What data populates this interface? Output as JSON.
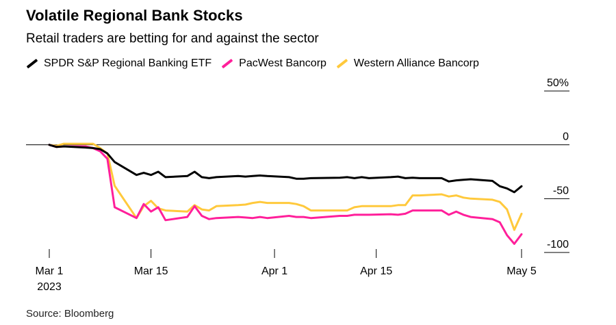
{
  "chart_data": {
    "type": "line",
    "title": "Volatile Regional Bank Stocks",
    "subtitle": "Retail traders are betting for and against the sector",
    "source": "Source: Bloomberg",
    "xlabel": "",
    "ylabel": "",
    "x_start": "2023-03-01",
    "x_end": "2023-05-05",
    "x_ticks": [
      {
        "date": "2023-03-01",
        "label": "Mar 1",
        "sublabel": "2023"
      },
      {
        "date": "2023-03-15",
        "label": "Mar 15"
      },
      {
        "date": "2023-04-01",
        "label": "Apr 1"
      },
      {
        "date": "2023-04-15",
        "label": "Apr 15"
      },
      {
        "date": "2023-05-05",
        "label": "May 5"
      }
    ],
    "y_ticks": [
      {
        "value": 50,
        "label": "50%"
      },
      {
        "value": 0,
        "label": "0"
      },
      {
        "value": -50,
        "label": "-50"
      },
      {
        "value": -100,
        "label": "-100"
      }
    ],
    "ylim": [
      -100,
      50
    ],
    "grid": false,
    "legend_position": "top-left",
    "series": [
      {
        "name": "SPDR S&P Regional Banking ETF",
        "color": "#000000",
        "points": [
          [
            "2023-03-01",
            0
          ],
          [
            "2023-03-02",
            -2
          ],
          [
            "2023-03-03",
            -1.5
          ],
          [
            "2023-03-06",
            -2.5
          ],
          [
            "2023-03-07",
            -3
          ],
          [
            "2023-03-08",
            -4
          ],
          [
            "2023-03-09",
            -8
          ],
          [
            "2023-03-10",
            -16
          ],
          [
            "2023-03-13",
            -28
          ],
          [
            "2023-03-14",
            -26
          ],
          [
            "2023-03-15",
            -28
          ],
          [
            "2023-03-16",
            -25
          ],
          [
            "2023-03-17",
            -30
          ],
          [
            "2023-03-20",
            -29
          ],
          [
            "2023-03-21",
            -25
          ],
          [
            "2023-03-22",
            -30
          ],
          [
            "2023-03-23",
            -31
          ],
          [
            "2023-03-24",
            -30
          ],
          [
            "2023-03-27",
            -29
          ],
          [
            "2023-03-28",
            -29.5
          ],
          [
            "2023-03-29",
            -29
          ],
          [
            "2023-03-30",
            -28.5
          ],
          [
            "2023-03-31",
            -29
          ],
          [
            "2023-04-03",
            -30
          ],
          [
            "2023-04-04",
            -31.5
          ],
          [
            "2023-04-05",
            -31.5
          ],
          [
            "2023-04-06",
            -31
          ],
          [
            "2023-04-10",
            -30.5
          ],
          [
            "2023-04-11",
            -30
          ],
          [
            "2023-04-12",
            -31
          ],
          [
            "2023-04-13",
            -30
          ],
          [
            "2023-04-14",
            -31
          ],
          [
            "2023-04-17",
            -30
          ],
          [
            "2023-04-18",
            -29.5
          ],
          [
            "2023-04-19",
            -31
          ],
          [
            "2023-04-20",
            -30.5
          ],
          [
            "2023-04-21",
            -31
          ],
          [
            "2023-04-24",
            -31
          ],
          [
            "2023-04-25",
            -34
          ],
          [
            "2023-04-26",
            -33
          ],
          [
            "2023-04-27",
            -32.5
          ],
          [
            "2023-04-28",
            -32
          ],
          [
            "2023-05-01",
            -33.5
          ],
          [
            "2023-05-02",
            -38.5
          ],
          [
            "2023-05-03",
            -40.5
          ],
          [
            "2023-05-04",
            -44
          ],
          [
            "2023-05-05",
            -38.5
          ]
        ]
      },
      {
        "name": "PacWest Bancorp",
        "color": "#ff1f9a",
        "points": [
          [
            "2023-03-01",
            0
          ],
          [
            "2023-03-02",
            -2
          ],
          [
            "2023-03-03",
            -1.5
          ],
          [
            "2023-03-06",
            -1.5
          ],
          [
            "2023-03-07",
            -3
          ],
          [
            "2023-03-08",
            -6
          ],
          [
            "2023-03-09",
            -13
          ],
          [
            "2023-03-10",
            -58
          ],
          [
            "2023-03-13",
            -68
          ],
          [
            "2023-03-14",
            -55
          ],
          [
            "2023-03-15",
            -62
          ],
          [
            "2023-03-16",
            -58
          ],
          [
            "2023-03-17",
            -70
          ],
          [
            "2023-03-20",
            -67
          ],
          [
            "2023-03-21",
            -57
          ],
          [
            "2023-03-22",
            -66
          ],
          [
            "2023-03-23",
            -69
          ],
          [
            "2023-03-24",
            -68
          ],
          [
            "2023-03-27",
            -67
          ],
          [
            "2023-03-28",
            -67.5
          ],
          [
            "2023-03-29",
            -68
          ],
          [
            "2023-03-30",
            -67
          ],
          [
            "2023-03-31",
            -68
          ],
          [
            "2023-04-03",
            -66
          ],
          [
            "2023-04-04",
            -67
          ],
          [
            "2023-04-05",
            -67
          ],
          [
            "2023-04-06",
            -68
          ],
          [
            "2023-04-10",
            -66
          ],
          [
            "2023-04-11",
            -66
          ],
          [
            "2023-04-12",
            -65
          ],
          [
            "2023-04-13",
            -65
          ],
          [
            "2023-04-14",
            -65
          ],
          [
            "2023-04-17",
            -64.5
          ],
          [
            "2023-04-18",
            -65
          ],
          [
            "2023-04-19",
            -64
          ],
          [
            "2023-04-20",
            -61
          ],
          [
            "2023-04-21",
            -61
          ],
          [
            "2023-04-24",
            -61
          ],
          [
            "2023-04-25",
            -65
          ],
          [
            "2023-04-26",
            -62
          ],
          [
            "2023-04-27",
            -65
          ],
          [
            "2023-04-28",
            -67
          ],
          [
            "2023-05-01",
            -69
          ],
          [
            "2023-05-02",
            -72
          ],
          [
            "2023-05-03",
            -84
          ],
          [
            "2023-05-04",
            -92
          ],
          [
            "2023-05-05",
            -83
          ]
        ]
      },
      {
        "name": "Western Alliance Bancorp",
        "color": "#ffc93c",
        "points": [
          [
            "2023-03-01",
            0
          ],
          [
            "2023-03-02",
            -1
          ],
          [
            "2023-03-03",
            1
          ],
          [
            "2023-03-06",
            1
          ],
          [
            "2023-03-07",
            1
          ],
          [
            "2023-03-08",
            -3
          ],
          [
            "2023-03-09",
            -8
          ],
          [
            "2023-03-10",
            -38
          ],
          [
            "2023-03-13",
            -68
          ],
          [
            "2023-03-14",
            -57
          ],
          [
            "2023-03-15",
            -52
          ],
          [
            "2023-03-16",
            -59
          ],
          [
            "2023-03-17",
            -61
          ],
          [
            "2023-03-20",
            -62
          ],
          [
            "2023-03-21",
            -56
          ],
          [
            "2023-03-22",
            -60
          ],
          [
            "2023-03-23",
            -61
          ],
          [
            "2023-03-24",
            -57
          ],
          [
            "2023-03-27",
            -56
          ],
          [
            "2023-03-28",
            -55.5
          ],
          [
            "2023-03-29",
            -54
          ],
          [
            "2023-03-30",
            -53
          ],
          [
            "2023-03-31",
            -54
          ],
          [
            "2023-04-03",
            -54
          ],
          [
            "2023-04-04",
            -55
          ],
          [
            "2023-04-05",
            -57
          ],
          [
            "2023-04-06",
            -61
          ],
          [
            "2023-04-10",
            -61
          ],
          [
            "2023-04-11",
            -61
          ],
          [
            "2023-04-12",
            -58
          ],
          [
            "2023-04-13",
            -57
          ],
          [
            "2023-04-14",
            -57
          ],
          [
            "2023-04-17",
            -57
          ],
          [
            "2023-04-18",
            -56
          ],
          [
            "2023-04-19",
            -56
          ],
          [
            "2023-04-20",
            -47
          ],
          [
            "2023-04-21",
            -47
          ],
          [
            "2023-04-24",
            -46
          ],
          [
            "2023-04-25",
            -48
          ],
          [
            "2023-04-26",
            -47
          ],
          [
            "2023-04-27",
            -49
          ],
          [
            "2023-04-28",
            -50
          ],
          [
            "2023-05-01",
            -51
          ],
          [
            "2023-05-02",
            -53
          ],
          [
            "2023-05-03",
            -60
          ],
          [
            "2023-05-04",
            -79
          ],
          [
            "2023-05-05",
            -64
          ]
        ]
      }
    ]
  }
}
